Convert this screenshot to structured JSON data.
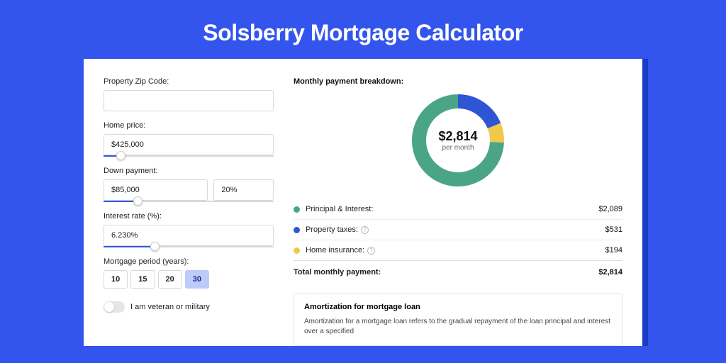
{
  "page": {
    "title": "Solsberry Mortgage Calculator"
  },
  "theme": {
    "page_bg": "#3355ee",
    "card_bg": "#ffffff",
    "accent": "#3355ee",
    "text": "#222222",
    "muted": "#666666"
  },
  "form": {
    "zip": {
      "label": "Property Zip Code:",
      "value": ""
    },
    "price": {
      "label": "Home price:",
      "value": "$425,000",
      "slider_pct": 10
    },
    "down": {
      "label": "Down payment:",
      "amount": "$85,000",
      "pct": "20%",
      "slider_pct": 20
    },
    "rate": {
      "label": "Interest rate (%):",
      "value": "6.230%",
      "slider_pct": 30
    },
    "period": {
      "label": "Mortgage period (years):",
      "options": [
        "10",
        "15",
        "20",
        "30"
      ],
      "selected": "30"
    },
    "veteran": {
      "label": "I am veteran or military",
      "checked": false
    }
  },
  "breakdown": {
    "title": "Monthly payment breakdown:",
    "chart": {
      "type": "donut",
      "center_value": "$2,814",
      "center_sub": "per month",
      "slices": [
        {
          "key": "pi",
          "value": 2089,
          "color": "#4aa586"
        },
        {
          "key": "tax",
          "value": 531,
          "color": "#2f55d4"
        },
        {
          "key": "ins",
          "value": 194,
          "color": "#f0c94a"
        }
      ],
      "stroke_width": 20,
      "outer_radius": 65,
      "background": "#ffffff"
    },
    "rows": [
      {
        "key": "pi",
        "label": "Principal & Interest:",
        "value": "$2,089",
        "color": "#4aa586",
        "info": false
      },
      {
        "key": "tax",
        "label": "Property taxes:",
        "value": "$531",
        "color": "#2f55d4",
        "info": true
      },
      {
        "key": "ins",
        "label": "Home insurance:",
        "value": "$194",
        "color": "#f0c94a",
        "info": true
      }
    ],
    "total": {
      "label": "Total monthly payment:",
      "value": "$2,814"
    }
  },
  "amort": {
    "title": "Amortization for mortgage loan",
    "text": "Amortization for a mortgage loan refers to the gradual repayment of the loan principal and interest over a specified"
  }
}
